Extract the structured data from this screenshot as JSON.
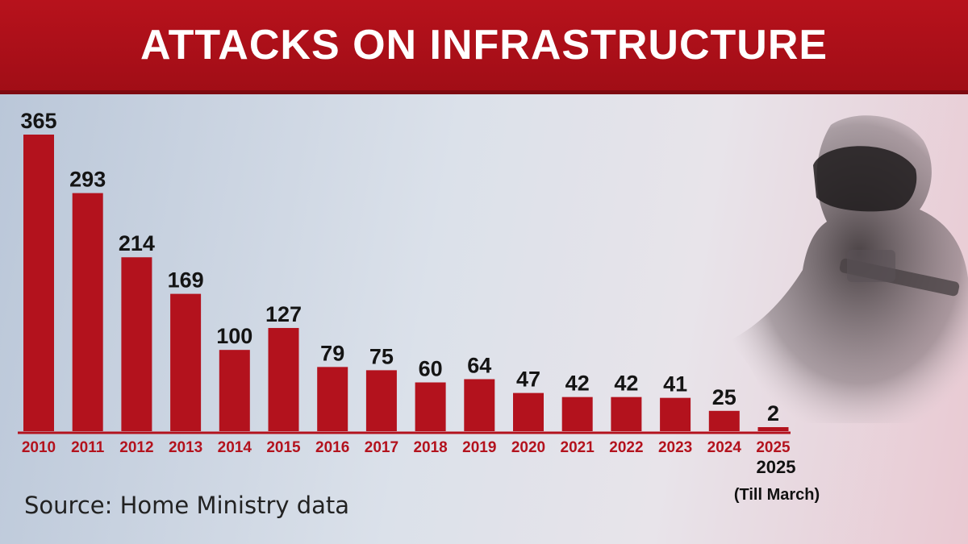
{
  "title": "ATTACKS ON INFRASTRUCTURE",
  "source": "Source: Home Ministry data",
  "footnote": {
    "year": "2025",
    "note": "(Till March)"
  },
  "colors": {
    "header": "#a60f18",
    "bar": "#b3121d",
    "axis_label": "#b3121d"
  },
  "chart_data": {
    "type": "bar",
    "title": "ATTACKS ON INFRASTRUCTURE",
    "xlabel": "",
    "ylabel": "",
    "categories": [
      "2010",
      "2011",
      "2012",
      "2013",
      "2014",
      "2015",
      "2016",
      "2017",
      "2018",
      "2019",
      "2020",
      "2021",
      "2022",
      "2023",
      "2024",
      "2025"
    ],
    "values": [
      365,
      293,
      214,
      169,
      100,
      127,
      79,
      75,
      60,
      64,
      47,
      42,
      42,
      41,
      25,
      2
    ],
    "ylim": [
      0,
      365
    ],
    "grid": false,
    "data_labels": true
  }
}
